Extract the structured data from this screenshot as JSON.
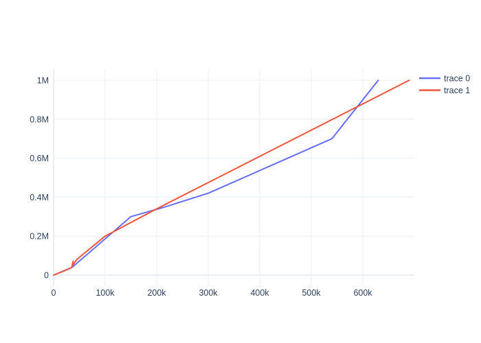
{
  "chart_data": {
    "type": "line",
    "title": "",
    "xlabel": "",
    "ylabel": "",
    "grid": true,
    "legend_position": "top-right",
    "xlim": [
      0,
      700000
    ],
    "ylim": [
      0,
      1060000
    ],
    "x_ticks": {
      "values": [
        0,
        100000,
        200000,
        300000,
        400000,
        500000,
        600000
      ],
      "labels": [
        "0",
        "100k",
        "200k",
        "300k",
        "400k",
        "500k",
        "600k"
      ]
    },
    "y_ticks": {
      "values": [
        0,
        200000,
        400000,
        600000,
        800000,
        1000000
      ],
      "labels": [
        "0",
        "0.2M",
        "0.4M",
        "0.6M",
        "0.8M",
        "1M"
      ]
    },
    "series": [
      {
        "name": "trace 0",
        "color": "#636EFA",
        "x": [
          0,
          36000,
          150000,
          210000,
          300000,
          540000,
          630000
        ],
        "y": [
          0,
          40000,
          300000,
          345000,
          420000,
          700000,
          1000000
        ]
      },
      {
        "name": "trace 1",
        "color": "#EF553B",
        "x": [
          0,
          15000,
          35000,
          38000,
          36000,
          45000,
          100000,
          200000,
          690000
        ],
        "y": [
          0,
          15000,
          38000,
          72000,
          46000,
          80000,
          200000,
          340000,
          1000000
        ]
      }
    ],
    "colors": {
      "text": "#2a3f5f",
      "gridline": "#E9EEF6",
      "zeroline": "#E9EEF6",
      "plot_background": "#ffffff"
    }
  }
}
